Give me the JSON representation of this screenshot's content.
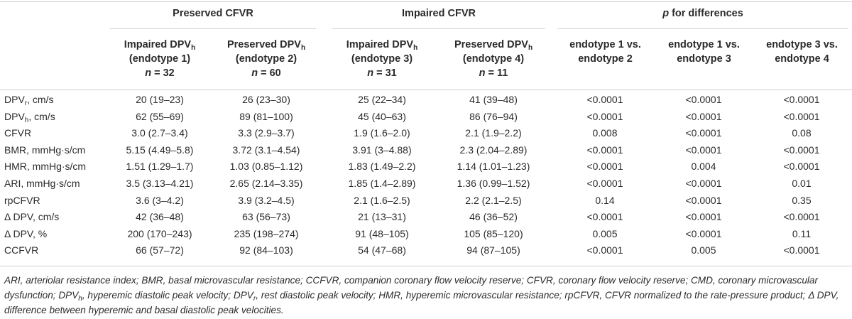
{
  "table": {
    "group_headers": {
      "preserved_cfvr": "Preserved CFVR",
      "impaired_cfvr": "Impaired CFVR",
      "p_italic": "p",
      "p_rest": " for differences"
    },
    "columns": [
      {
        "line1_main": "Impaired DPV",
        "line1_sub": "h",
        "line2": "(endotype 1)",
        "n_label": "n",
        "n_value": " = 32"
      },
      {
        "line1_main": "Preserved DPV",
        "line1_sub": "h",
        "line2": "(endotype 2)",
        "n_label": "n",
        "n_value": " = 60"
      },
      {
        "line1_main": "Impaired DPV",
        "line1_sub": "h",
        "line2": "(endotype 3)",
        "n_label": "n",
        "n_value": " = 31"
      },
      {
        "line1_main": "Preserved DPV",
        "line1_sub": "h",
        "line2": "(endotype 4)",
        "n_label": "n",
        "n_value": " = 11"
      }
    ],
    "p_columns": [
      {
        "line1": "endotype 1 vs.",
        "line2": "endotype 2"
      },
      {
        "line1": "endotype 1 vs.",
        "line2": "endotype 3"
      },
      {
        "line1": "endotype 3 vs.",
        "line2": "endotype 4"
      }
    ],
    "rows": [
      {
        "label_main": "DPV",
        "label_sub": "r",
        "label_rest": ", cm/s",
        "values": [
          "20 (19–23)",
          "26 (23–30)",
          "25 (22–34)",
          "41 (39–48)",
          "<0.0001",
          "<0.0001",
          "<0.0001"
        ]
      },
      {
        "label_main": "DPV",
        "label_sub": "h",
        "label_rest": ", cm/s",
        "values": [
          "62 (55–69)",
          "89 (81–100)",
          "45 (40–63)",
          "86 (76–94)",
          "<0.0001",
          "<0.0001",
          "<0.0001"
        ]
      },
      {
        "label_main": "CFVR",
        "label_sub": "",
        "label_rest": "",
        "values": [
          "3.0 (2.7–3.4)",
          "3.3 (2.9–3.7)",
          "1.9 (1.6–2.0)",
          "2.1 (1.9–2.2)",
          "0.008",
          "<0.0001",
          "0.08"
        ]
      },
      {
        "label_main": "BMR, mmHg·s/cm",
        "label_sub": "",
        "label_rest": "",
        "values": [
          "5.15 (4.49–5.8)",
          "3.72 (3.1–4.54)",
          "3.91 (3–4.88)",
          "2.3 (2.04–2.89)",
          "<0.0001",
          "<0.0001",
          "<0.0001"
        ]
      },
      {
        "label_main": "HMR, mmHg·s/cm",
        "label_sub": "",
        "label_rest": "",
        "values": [
          "1.51 (1.29–1.7)",
          "1.03 (0.85–1.12)",
          "1.83 (1.49–2.2)",
          "1.14 (1.01–1.23)",
          "<0.0001",
          "0.004",
          "<0.0001"
        ]
      },
      {
        "label_main": "ARI, mmHg·s/cm",
        "label_sub": "",
        "label_rest": "",
        "values": [
          "3.5 (3.13–4.21)",
          "2.65 (2.14–3.35)",
          "1.85 (1.4–2.89)",
          "1.36 (0.99–1.52)",
          "<0.0001",
          "<0.0001",
          "0.01"
        ]
      },
      {
        "label_main": "rpCFVR",
        "label_sub": "",
        "label_rest": "",
        "values": [
          "3.6 (3–4.2)",
          "3.9 (3.2–4.5)",
          "2.1 (1.6–2.5)",
          "2.2 (2.1–2.5)",
          "0.14",
          "<0.0001",
          "0.35"
        ]
      },
      {
        "label_main": "Δ DPV, cm/s",
        "label_sub": "",
        "label_rest": "",
        "values": [
          "42 (36–48)",
          "63 (56–73)",
          "21 (13–31)",
          "46 (36–52)",
          "<0.0001",
          "<0.0001",
          "<0.0001"
        ]
      },
      {
        "label_main": "Δ DPV, %",
        "label_sub": "",
        "label_rest": "",
        "values": [
          "200 (170–243)",
          "235 (198–274)",
          "91 (48–105)",
          "105 (85–120)",
          "0.005",
          "<0.0001",
          "0.11"
        ]
      },
      {
        "label_main": "CCFVR",
        "label_sub": "",
        "label_rest": "",
        "values": [
          "66 (57–72)",
          "92 (84–103)",
          "54 (47–68)",
          "94 (87–105)",
          "<0.0001",
          "0.005",
          "<0.0001"
        ]
      }
    ]
  },
  "footnote": {
    "part1": "ARI, arteriolar resistance index; BMR, basal microvascular resistance; CCFVR, companion coronary flow velocity reserve; CFVR, coronary flow velocity reserve; CMD, coronary microvascular dysfunction; DPV",
    "sub1": "h",
    "part2": ", hyperemic diastolic peak velocity; DPV",
    "sub2": "r",
    "part3": ", rest diastolic peak velocity; HMR, hyperemic microvascular resistance; rpCFVR, CFVR normalized to the rate-pressure product; Δ DPV, difference between hyperemic and basal diastolic peak velocities."
  }
}
